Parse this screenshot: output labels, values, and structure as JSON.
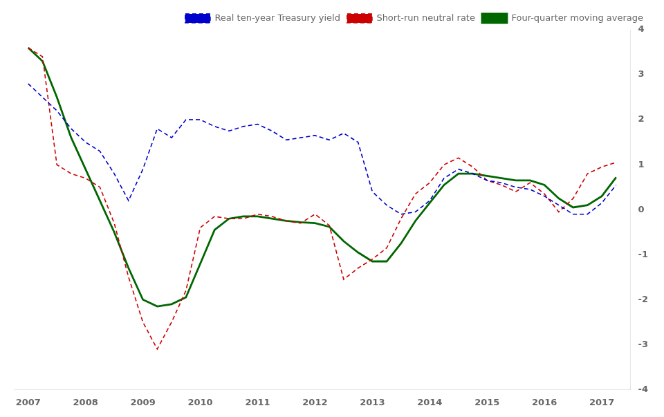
{
  "chart_data": {
    "type": "line",
    "x": [
      2007.0,
      2007.25,
      2007.5,
      2007.75,
      2008.0,
      2008.25,
      2008.5,
      2008.75,
      2009.0,
      2009.25,
      2009.5,
      2009.75,
      2010.0,
      2010.25,
      2010.5,
      2010.75,
      2011.0,
      2011.25,
      2011.5,
      2011.75,
      2012.0,
      2012.25,
      2012.5,
      2012.75,
      2013.0,
      2013.25,
      2013.5,
      2013.75,
      2014.0,
      2014.25,
      2014.5,
      2014.75,
      2015.0,
      2015.25,
      2015.5,
      2015.75,
      2016.0,
      2016.25,
      2016.5,
      2016.75,
      2017.0,
      2017.25
    ],
    "series": [
      {
        "name": "Real ten-year Treasury yield",
        "color": "#0000CC",
        "line_style": "dashed",
        "values": [
          2.8,
          2.5,
          2.2,
          1.8,
          1.5,
          1.3,
          0.8,
          0.2,
          0.9,
          1.8,
          1.6,
          2.0,
          2.0,
          1.85,
          1.75,
          1.85,
          1.9,
          1.75,
          1.55,
          1.6,
          1.65,
          1.55,
          1.7,
          1.5,
          0.4,
          0.1,
          -0.1,
          -0.05,
          0.2,
          0.7,
          0.9,
          0.8,
          0.65,
          0.6,
          0.5,
          0.45,
          0.3,
          0.1,
          -0.1,
          -0.1,
          0.15,
          0.55
        ]
      },
      {
        "name": "Short-run neutral rate",
        "color": "#CC0000",
        "line_style": "dashed",
        "values": [
          3.6,
          3.4,
          1.0,
          0.8,
          0.7,
          0.5,
          -0.3,
          -1.5,
          -2.5,
          -3.1,
          -2.5,
          -1.8,
          -0.4,
          -0.15,
          -0.2,
          -0.2,
          -0.1,
          -0.15,
          -0.25,
          -0.3,
          -0.1,
          -0.35,
          -1.55,
          -1.3,
          -1.1,
          -0.85,
          -0.2,
          0.35,
          0.6,
          1.0,
          1.15,
          0.95,
          0.65,
          0.55,
          0.4,
          0.6,
          0.35,
          -0.05,
          0.25,
          0.8,
          0.95,
          1.05
        ]
      },
      {
        "name": "Four-quarter moving average",
        "color": "#006600",
        "line_style": "solid",
        "values": [
          3.6,
          3.3,
          2.5,
          1.6,
          0.9,
          0.2,
          -0.5,
          -1.3,
          -2.0,
          -2.15,
          -2.1,
          -1.95,
          -1.2,
          -0.45,
          -0.2,
          -0.15,
          -0.15,
          -0.2,
          -0.25,
          -0.28,
          -0.3,
          -0.38,
          -0.7,
          -0.95,
          -1.15,
          -1.15,
          -0.75,
          -0.25,
          0.15,
          0.55,
          0.8,
          0.8,
          0.75,
          0.7,
          0.65,
          0.65,
          0.55,
          0.25,
          0.05,
          0.1,
          0.3,
          0.72
        ]
      }
    ],
    "xlim": [
      2006.75,
      2017.5
    ],
    "xticks": [
      2007,
      2008,
      2009,
      2010,
      2011,
      2012,
      2013,
      2014,
      2015,
      2016,
      2017
    ],
    "ylim": [
      -4,
      4
    ],
    "yticks": [
      -4,
      -3,
      -2,
      -1,
      0,
      1,
      2,
      3,
      4
    ],
    "grid": false,
    "legend": "upper right"
  }
}
